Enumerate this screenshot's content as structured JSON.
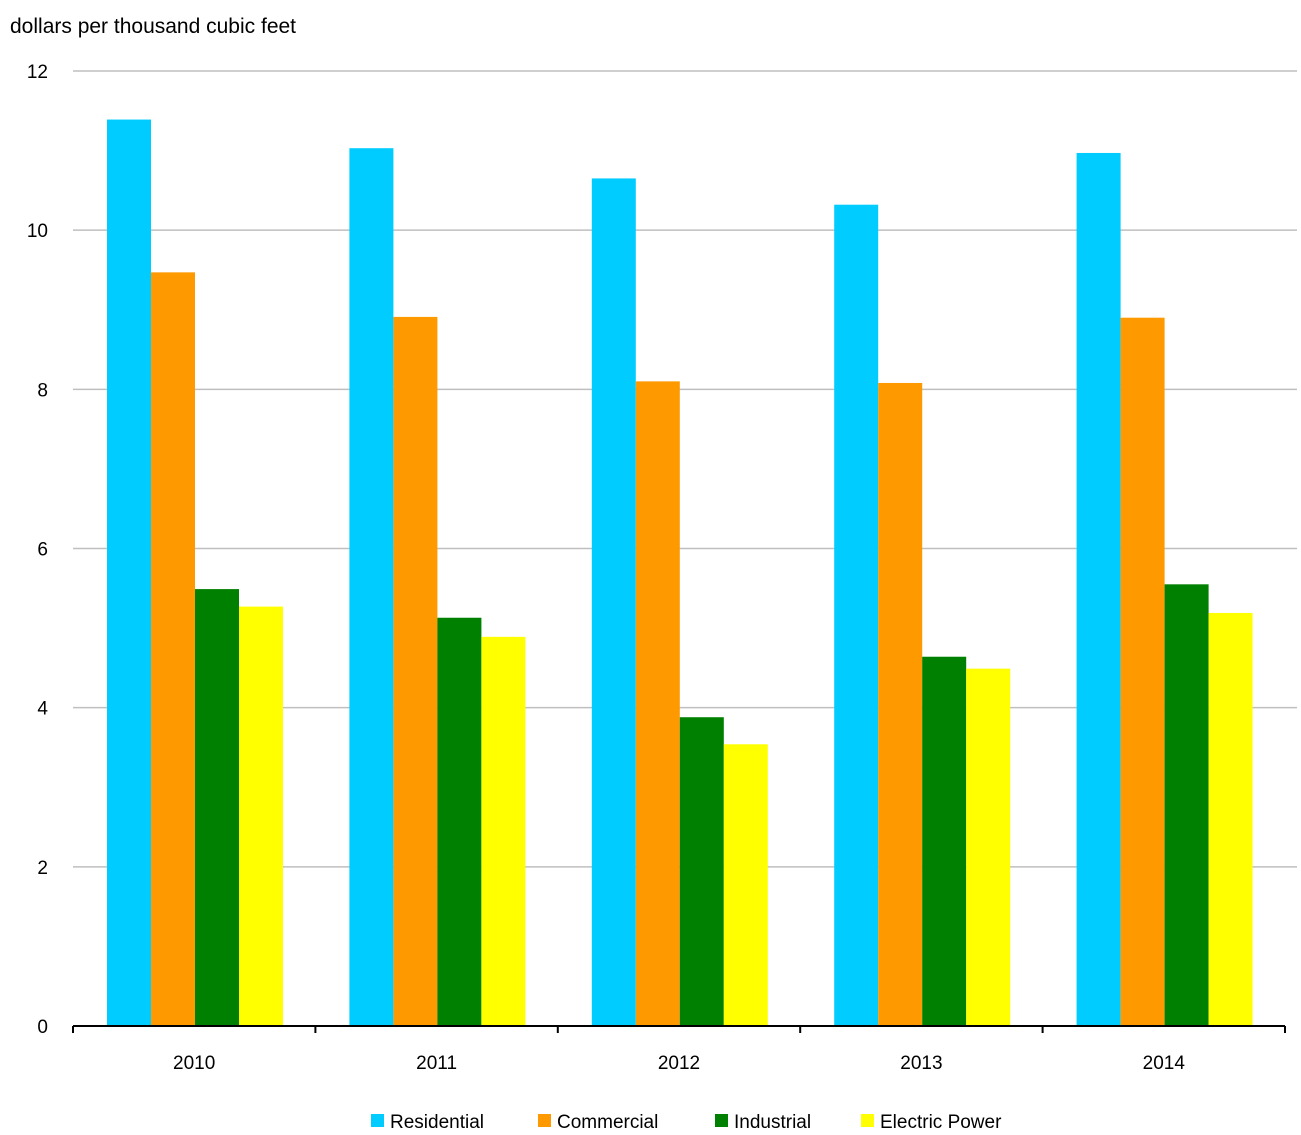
{
  "chart_data": {
    "type": "bar",
    "title": "",
    "ylabel": "dollars per thousand cubic feet",
    "xlabel": "",
    "categories": [
      "2010",
      "2011",
      "2012",
      "2013",
      "2014"
    ],
    "ylim": [
      0,
      12
    ],
    "yticks": [
      0,
      2,
      4,
      6,
      8,
      10,
      12
    ],
    "grid": true,
    "legend_position": "bottom",
    "series": [
      {
        "name": "Residential",
        "color": "#00CCFF",
        "values": [
          11.39,
          11.03,
          10.65,
          10.32,
          10.97
        ]
      },
      {
        "name": "Commercial",
        "color": "#FF9900",
        "values": [
          9.47,
          8.91,
          8.1,
          8.08,
          8.9
        ]
      },
      {
        "name": "Industrial",
        "color": "#008000",
        "values": [
          5.49,
          5.13,
          3.88,
          4.64,
          5.55
        ]
      },
      {
        "name": "Electric Power",
        "color": "#FFFF00",
        "values": [
          5.27,
          4.89,
          3.54,
          4.49,
          5.19
        ]
      }
    ]
  }
}
